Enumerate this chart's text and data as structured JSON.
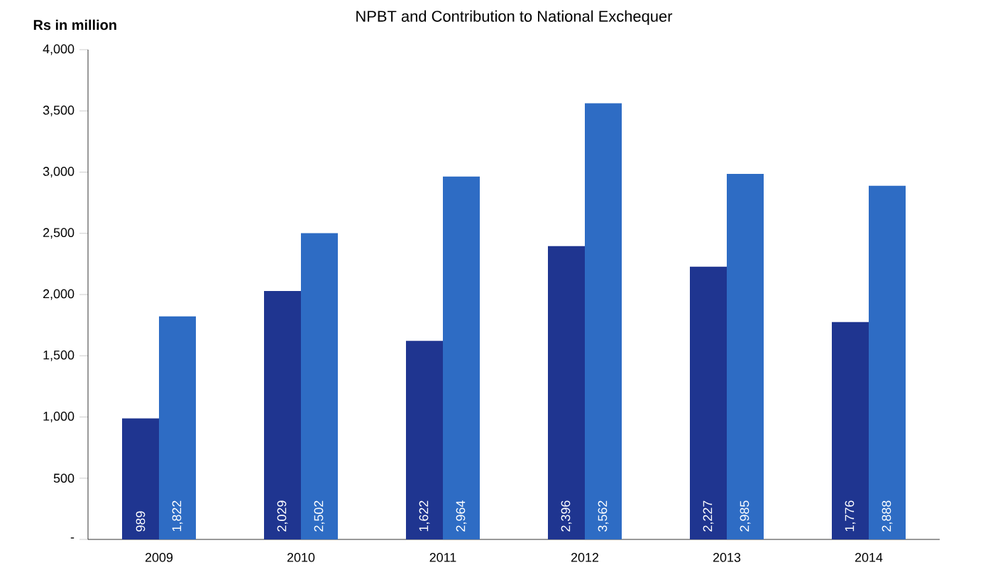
{
  "chart_data": {
    "type": "bar",
    "title": "NPBT and Contribution to National Exchequer",
    "ylabel": "Rs in million",
    "categories": [
      "2009",
      "2010",
      "2011",
      "2012",
      "2013",
      "2014"
    ],
    "series": [
      {
        "color": "#1f3590",
        "values": [
          989,
          2029,
          1622,
          2396,
          2227,
          1776
        ],
        "value_labels": [
          "989",
          "2,029",
          "1,622",
          "2,396",
          "2,227",
          "1,776"
        ]
      },
      {
        "color": "#2e6cc4",
        "values": [
          1822,
          2502,
          2964,
          3562,
          2985,
          2888
        ],
        "value_labels": [
          "1,822",
          "2,502",
          "2,964",
          "3,562",
          "2,985",
          "2,888"
        ]
      }
    ],
    "ylim": [
      0,
      4000
    ],
    "yticks": [
      {
        "value": 0,
        "label": "-"
      },
      {
        "value": 500,
        "label": "500"
      },
      {
        "value": 1000,
        "label": "1,000"
      },
      {
        "value": 1500,
        "label": "1,500"
      },
      {
        "value": 2000,
        "label": "2,000"
      },
      {
        "value": 2500,
        "label": "2,500"
      },
      {
        "value": 3000,
        "label": "3,000"
      },
      {
        "value": 3500,
        "label": "3,500"
      },
      {
        "value": 4000,
        "label": "4,000"
      }
    ],
    "grid": false
  }
}
